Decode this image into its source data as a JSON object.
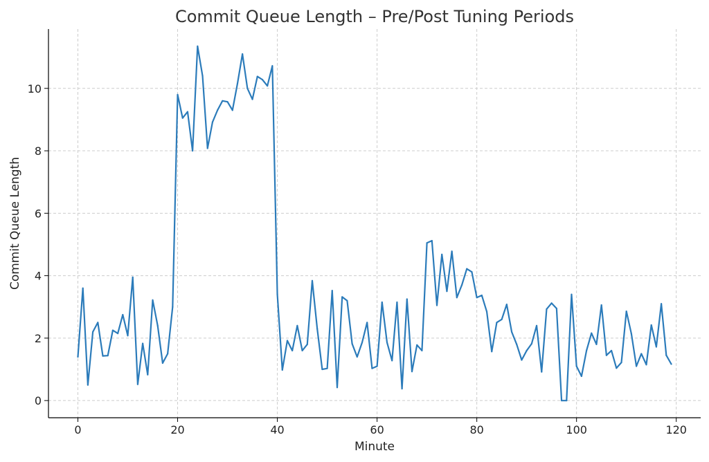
{
  "chart_data": {
    "type": "line",
    "title": "Commit Queue Length – Pre/Post Tuning Periods",
    "xlabel": "Minute",
    "ylabel": "Commit Queue Length",
    "xlim": [
      -5.9,
      124.9
    ],
    "ylim": [
      -0.55,
      11.9
    ],
    "xticks": [
      0,
      20,
      40,
      60,
      80,
      100,
      120
    ],
    "yticks": [
      0,
      2,
      4,
      6,
      8,
      10
    ],
    "grid": true,
    "legend": "none",
    "colors": {
      "line": "#2b7bba",
      "grid": "#cccccc"
    },
    "series": [
      {
        "x": [
          0,
          1,
          2,
          3,
          4,
          5,
          6,
          7,
          8,
          9,
          10,
          11,
          12,
          13,
          14,
          15,
          16,
          17,
          18,
          19,
          20,
          21,
          22,
          23,
          24,
          25,
          26,
          27,
          28,
          29,
          30,
          31,
          32,
          33,
          34,
          35,
          36,
          37,
          38,
          39,
          40,
          41,
          42,
          43,
          44,
          45,
          46,
          47,
          48,
          49,
          50,
          51,
          52,
          53,
          54,
          55,
          56,
          57,
          58,
          59,
          60,
          61,
          62,
          63,
          64,
          65,
          66,
          67,
          68,
          69,
          70,
          71,
          72,
          73,
          74,
          75,
          76,
          77,
          78,
          79,
          80,
          81,
          82,
          83,
          84,
          85,
          86,
          87,
          88,
          89,
          90,
          91,
          92,
          93,
          94,
          95,
          96,
          97,
          98,
          99,
          100,
          101,
          102,
          103,
          104,
          105,
          106,
          107,
          108,
          109,
          110,
          111,
          112,
          113,
          114,
          115,
          116,
          117,
          118,
          119
        ],
        "values": [
          1.4,
          3.6,
          0.5,
          2.2,
          2.5,
          1.43,
          1.44,
          2.25,
          2.15,
          2.75,
          2.08,
          3.95,
          0.52,
          1.83,
          0.83,
          3.22,
          2.4,
          1.2,
          1.5,
          3.0,
          9.8,
          9.05,
          9.25,
          8.0,
          11.35,
          10.4,
          8.08,
          8.92,
          9.3,
          9.6,
          9.57,
          9.3,
          10.15,
          11.1,
          10.0,
          9.65,
          10.38,
          10.28,
          10.08,
          10.72,
          3.4,
          0.98,
          1.92,
          1.6,
          2.4,
          1.6,
          1.8,
          3.84,
          2.3,
          1.0,
          1.03,
          3.52,
          0.42,
          3.32,
          3.2,
          1.82,
          1.4,
          1.86,
          2.5,
          1.03,
          1.1,
          3.15,
          1.86,
          1.28,
          3.15,
          0.38,
          3.25,
          0.93,
          1.78,
          1.6,
          5.05,
          5.12,
          3.05,
          4.68,
          3.5,
          4.78,
          3.3,
          3.7,
          4.22,
          4.12,
          3.3,
          3.37,
          2.85,
          1.57,
          2.5,
          2.6,
          3.08,
          2.2,
          1.8,
          1.3,
          1.6,
          1.82,
          2.4,
          0.92,
          2.93,
          3.12,
          2.95,
          0.0,
          0.0,
          3.4,
          1.1,
          0.78,
          1.6,
          2.16,
          1.8,
          3.06,
          1.45,
          1.6,
          1.04,
          1.22,
          2.86,
          2.14,
          1.1,
          1.5,
          1.15,
          2.42,
          1.72,
          3.1,
          1.45,
          1.17
        ]
      }
    ]
  }
}
